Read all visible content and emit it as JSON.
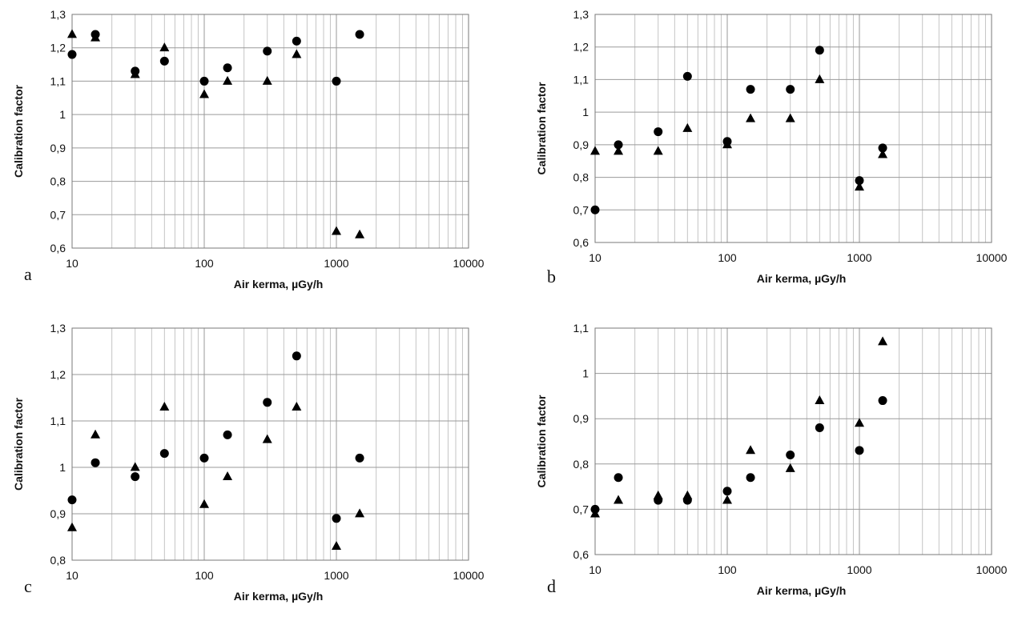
{
  "chart_data": [
    {
      "type": "scatter",
      "panel_label": "a",
      "xlabel": "Air kerma, µGy/h",
      "ylabel": "Calibration factor",
      "xscale": "log",
      "xlim": [
        10,
        10000
      ],
      "ylim": [
        0.6,
        1.3
      ],
      "ystep": 0.1,
      "xticks": [
        "10",
        "100",
        "1000",
        "10000"
      ],
      "yticks": [
        "0,6",
        "0,7",
        "0,8",
        "0,9",
        "1",
        "1,1",
        "1,2",
        "1,3"
      ],
      "grid": true,
      "series": [
        {
          "marker": "circle",
          "x": [
            10,
            15,
            30,
            50,
            100,
            150,
            300,
            500,
            1000,
            1500
          ],
          "y": [
            1.18,
            1.24,
            1.13,
            1.16,
            1.1,
            1.14,
            1.19,
            1.22,
            1.1,
            1.24
          ]
        },
        {
          "marker": "triangle",
          "x": [
            10,
            15,
            30,
            50,
            100,
            150,
            300,
            500,
            1000,
            1500
          ],
          "y": [
            1.24,
            1.23,
            1.12,
            1.2,
            1.06,
            1.1,
            1.1,
            1.18,
            0.65,
            0.64
          ]
        }
      ]
    },
    {
      "type": "scatter",
      "panel_label": "b",
      "xlabel": "Air kerma, µGy/h",
      "ylabel": "Calibration factor",
      "xscale": "log",
      "xlim": [
        10,
        10000
      ],
      "ylim": [
        0.6,
        1.3
      ],
      "ystep": 0.1,
      "xticks": [
        "10",
        "100",
        "1000",
        "10000"
      ],
      "yticks": [
        "0,6",
        "0,7",
        "0,8",
        "0,9",
        "1",
        "1,1",
        "1,2",
        "1,3"
      ],
      "grid": true,
      "series": [
        {
          "marker": "circle",
          "x": [
            10,
            15,
            30,
            50,
            100,
            150,
            300,
            500,
            1000,
            1500
          ],
          "y": [
            0.7,
            0.9,
            0.94,
            1.11,
            0.91,
            1.07,
            1.07,
            1.19,
            0.79,
            0.89
          ]
        },
        {
          "marker": "triangle",
          "x": [
            10,
            15,
            30,
            50,
            100,
            150,
            300,
            500,
            1000,
            1500
          ],
          "y": [
            0.88,
            0.88,
            0.88,
            0.95,
            0.9,
            0.98,
            0.98,
            1.1,
            0.77,
            0.87
          ]
        }
      ]
    },
    {
      "type": "scatter",
      "panel_label": "c",
      "xlabel": "Air kerma, µGy/h",
      "ylabel": "Calibration factor",
      "xscale": "log",
      "xlim": [
        10,
        10000
      ],
      "ylim": [
        0.8,
        1.3
      ],
      "ystep": 0.1,
      "xticks": [
        "10",
        "100",
        "1000",
        "10000"
      ],
      "yticks": [
        "0,8",
        "0,9",
        "1",
        "1,1",
        "1,2",
        "1,3"
      ],
      "grid": true,
      "series": [
        {
          "marker": "circle",
          "x": [
            10,
            15,
            30,
            50,
            100,
            150,
            300,
            500,
            1000,
            1500
          ],
          "y": [
            0.93,
            1.01,
            0.98,
            1.03,
            1.02,
            1.07,
            1.14,
            1.24,
            0.89,
            1.02
          ]
        },
        {
          "marker": "triangle",
          "x": [
            10,
            15,
            30,
            50,
            100,
            150,
            300,
            500,
            1000,
            1500
          ],
          "y": [
            0.87,
            1.07,
            1.0,
            1.13,
            0.92,
            0.98,
            1.06,
            1.13,
            0.83,
            0.9
          ]
        }
      ]
    },
    {
      "type": "scatter",
      "panel_label": "d",
      "xlabel": "Air kerma, µGy/h",
      "ylabel": "Calibration factor",
      "xscale": "log",
      "xlim": [
        10,
        10000
      ],
      "ylim": [
        0.6,
        1.1
      ],
      "ystep": 0.1,
      "xticks": [
        "10",
        "100",
        "1000",
        "10000"
      ],
      "yticks": [
        "0,6",
        "0,7",
        "0,8",
        "0,9",
        "1",
        "1,1"
      ],
      "grid": true,
      "series": [
        {
          "marker": "circle",
          "x": [
            10,
            15,
            30,
            50,
            100,
            150,
            300,
            500,
            1000,
            1500
          ],
          "y": [
            0.7,
            0.77,
            0.72,
            0.72,
            0.74,
            0.77,
            0.82,
            0.88,
            0.83,
            0.94
          ]
        },
        {
          "marker": "triangle",
          "x": [
            10,
            15,
            30,
            50,
            100,
            150,
            300,
            500,
            1000,
            1500
          ],
          "y": [
            0.69,
            0.72,
            0.73,
            0.73,
            0.72,
            0.83,
            0.79,
            0.94,
            0.89,
            1.07
          ]
        }
      ]
    }
  ]
}
